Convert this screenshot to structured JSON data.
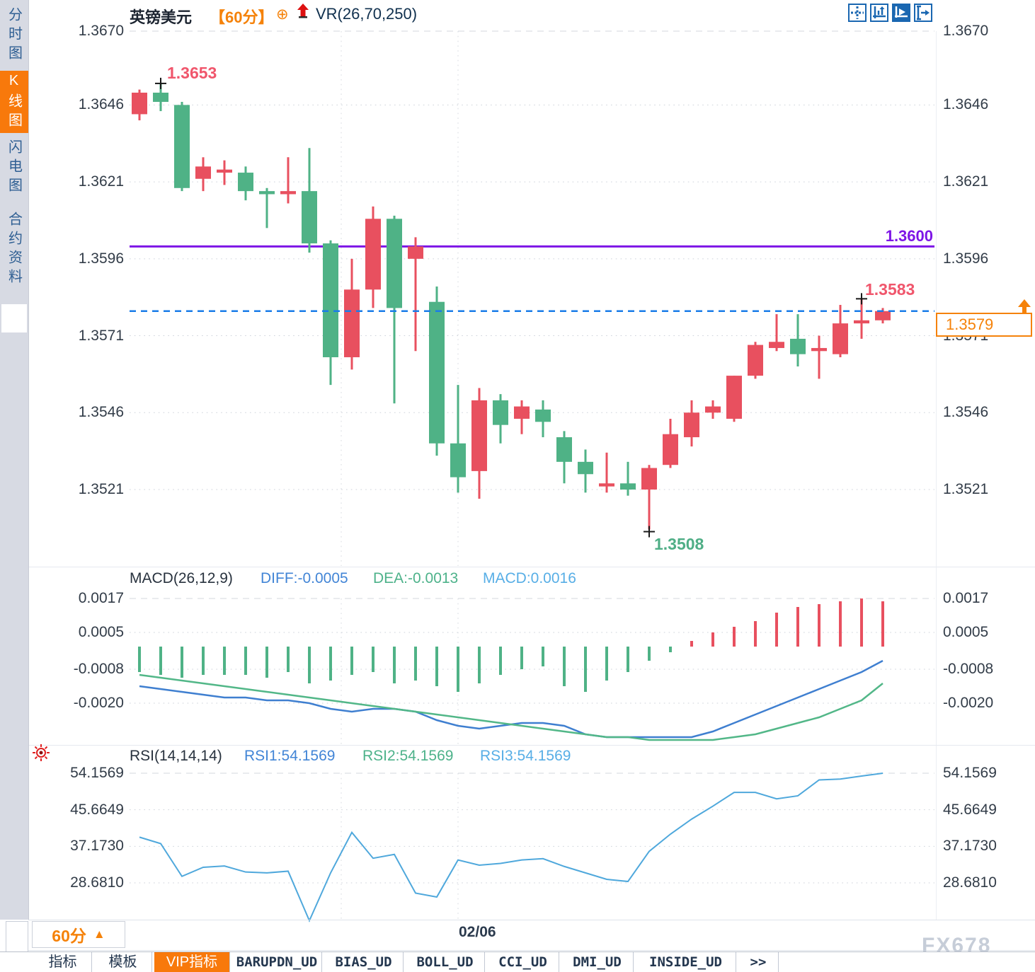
{
  "window": {
    "watermark": "FX678"
  },
  "sidebar": {
    "items": [
      {
        "label": "分时图",
        "active": false
      },
      {
        "label": "K线图",
        "active": true
      },
      {
        "label": "闪电图",
        "active": false
      },
      {
        "label": "合约资料",
        "active": false
      }
    ]
  },
  "header": {
    "symbol": "英镑美元",
    "period": "【60分】",
    "plus_icon": "circle-plus-icon",
    "arrow_icon": "red-up-arrow-icon",
    "indicator": "VR(26,70,250)"
  },
  "toolbar": {
    "icons": [
      "crosshair-icon",
      "axis-scale-icon",
      "pointer-chart-icon",
      "export-chart-icon"
    ]
  },
  "main_chart": {
    "y_axis": [
      "1.3670",
      "1.3646",
      "1.3621",
      "1.3596",
      "1.3571",
      "1.3546",
      "1.3521"
    ],
    "high_label": "1.3653",
    "low_label": "1.3508",
    "hline_label": "1.3600",
    "swing_high_label": "1.3583",
    "current_price": "1.3579"
  },
  "macd_panel": {
    "title": "MACD(26,12,9)",
    "diff_label": "DIFF:-0.0005",
    "dea_label": "DEA:-0.0013",
    "macd_label": "MACD:0.0016",
    "y_axis": [
      "0.0017",
      "0.0005",
      "-0.0008",
      "-0.0020"
    ]
  },
  "rsi_panel": {
    "title": "RSI(14,14,14)",
    "rsi1_label": "RSI1:54.1569",
    "rsi2_label": "RSI2:54.1569",
    "rsi3_label": "RSI3:54.1569",
    "y_axis": [
      "54.1569",
      "45.6649",
      "37.1730",
      "28.6810"
    ],
    "flag_icon": "red-target-icon"
  },
  "bottom": {
    "period_button": {
      "label": "60分",
      "arrow": "▲"
    },
    "date_label": "02/06",
    "tabs": [
      {
        "label": "指标",
        "active": false
      },
      {
        "label": "模板",
        "active": false
      },
      {
        "label": "VIP指标",
        "active": true
      },
      {
        "label": "BARUPDN_UD",
        "active": false
      },
      {
        "label": "BIAS_UD",
        "active": false
      },
      {
        "label": "BOLL_UD",
        "active": false
      },
      {
        "label": "CCI_UD",
        "active": false
      },
      {
        "label": "DMI_UD",
        "active": false
      },
      {
        "label": "INSIDE_UD",
        "active": false
      },
      {
        "label": ">>",
        "active": false
      }
    ]
  },
  "colors": {
    "up": "#e8505f",
    "down": "#4fb286",
    "accent_orange": "#f5820a",
    "purple_line": "#7d15e6",
    "current_price_line": "#1a7ce8",
    "diff_line": "#3f7fd0",
    "dea_line": "#52b788",
    "rsi_line": "#4fa8dc"
  },
  "chart_data": [
    {
      "type": "candlestick",
      "title": "英镑美元 60分",
      "y_ticks": [
        1.367,
        1.3646,
        1.3621,
        1.3596,
        1.3571,
        1.3546,
        1.3521
      ],
      "horizontal_line": 1.36,
      "current_price": 1.3579,
      "session_label": "02/06",
      "marked_high": 1.3653,
      "marked_low": 1.3508,
      "swing_high": 1.3583,
      "markers": [
        {
          "candle": 1,
          "at": "high"
        },
        {
          "candle": 24,
          "at": "low"
        },
        {
          "candle": 34,
          "at": "high"
        }
      ],
      "candles": [
        [
          1.3643,
          1.3651,
          1.3641,
          1.365
        ],
        [
          1.365,
          1.3653,
          1.3644,
          1.3647
        ],
        [
          1.3646,
          1.3647,
          1.3618,
          1.3619
        ],
        [
          1.3622,
          1.3629,
          1.3618,
          1.3626
        ],
        [
          1.3624,
          1.3628,
          1.362,
          1.3625
        ],
        [
          1.3624,
          1.3626,
          1.3615,
          1.3618
        ],
        [
          1.3618,
          1.3619,
          1.3606,
          1.3617
        ],
        [
          1.3617,
          1.3629,
          1.3614,
          1.3618
        ],
        [
          1.3618,
          1.3632,
          1.3598,
          1.3601
        ],
        [
          1.3601,
          1.3602,
          1.3555,
          1.3564
        ],
        [
          1.3564,
          1.3596,
          1.356,
          1.3586
        ],
        [
          1.3586,
          1.3613,
          1.358,
          1.3609
        ],
        [
          1.3609,
          1.361,
          1.3549,
          1.358
        ],
        [
          1.3596,
          1.3603,
          1.3566,
          1.36
        ],
        [
          1.3582,
          1.3587,
          1.3532,
          1.3536
        ],
        [
          1.3536,
          1.3555,
          1.352,
          1.3525
        ],
        [
          1.3527,
          1.3554,
          1.3518,
          1.355
        ],
        [
          1.355,
          1.3552,
          1.3536,
          1.3542
        ],
        [
          1.3544,
          1.355,
          1.3539,
          1.3548
        ],
        [
          1.3547,
          1.355,
          1.3538,
          1.3543
        ],
        [
          1.3538,
          1.354,
          1.3523,
          1.353
        ],
        [
          1.353,
          1.3534,
          1.352,
          1.3526
        ],
        [
          1.3522,
          1.3533,
          1.352,
          1.3523
        ],
        [
          1.3523,
          1.353,
          1.3519,
          1.3521
        ],
        [
          1.3521,
          1.3529,
          1.3508,
          1.3528
        ],
        [
          1.3529,
          1.3544,
          1.3528,
          1.3539
        ],
        [
          1.3538,
          1.355,
          1.3535,
          1.3546
        ],
        [
          1.3546,
          1.355,
          1.3544,
          1.3548
        ],
        [
          1.3544,
          1.3558,
          1.3543,
          1.3558
        ],
        [
          1.3558,
          1.3569,
          1.3557,
          1.3568
        ],
        [
          1.3567,
          1.3578,
          1.3566,
          1.3569
        ],
        [
          1.357,
          1.3578,
          1.3561,
          1.3565
        ],
        [
          1.3566,
          1.3571,
          1.3557,
          1.3567
        ],
        [
          1.3565,
          1.3581,
          1.3564,
          1.3575
        ],
        [
          1.3575,
          1.3583,
          1.357,
          1.3576
        ],
        [
          1.3576,
          1.358,
          1.3575,
          1.3579
        ]
      ]
    },
    {
      "type": "bar",
      "title": "MACD(26,12,9)",
      "y_ticks": [
        0.0017,
        0.0005,
        -0.0008,
        -0.002
      ],
      "diff": -0.0005,
      "dea": -0.0013,
      "macd": 0.0016,
      "histogram": [
        -0.0009,
        -0.001,
        -0.0011,
        -0.001,
        -0.001,
        -0.001,
        -0.0011,
        -0.0009,
        -0.0013,
        -0.0012,
        -0.001,
        -0.0009,
        -0.0013,
        -0.0012,
        -0.0014,
        -0.0016,
        -0.0013,
        -0.001,
        -0.0008,
        -0.0007,
        -0.0014,
        -0.0016,
        -0.0012,
        -0.0009,
        -0.0005,
        -0.0002,
        0.0002,
        0.0005,
        0.0007,
        0.0009,
        0.0012,
        0.0014,
        0.0015,
        0.0016,
        0.0017,
        0.0016
      ],
      "series": [
        {
          "name": "DIFF",
          "color": "#3f7fd0",
          "values": [
            -0.0014,
            -0.0015,
            -0.0016,
            -0.0017,
            -0.0018,
            -0.0018,
            -0.0019,
            -0.0019,
            -0.002,
            -0.0022,
            -0.0023,
            -0.0022,
            -0.0022,
            -0.0023,
            -0.0026,
            -0.0028,
            -0.0029,
            -0.0028,
            -0.0027,
            -0.0027,
            -0.0028,
            -0.0031,
            -0.0032,
            -0.0032,
            -0.0032,
            -0.0032,
            -0.0032,
            -0.003,
            -0.0027,
            -0.0024,
            -0.0021,
            -0.0018,
            -0.0015,
            -0.0012,
            -0.0009,
            -0.0005
          ]
        },
        {
          "name": "DEA",
          "color": "#52b788",
          "values": [
            -0.001,
            -0.0011,
            -0.0012,
            -0.0013,
            -0.0014,
            -0.0015,
            -0.0016,
            -0.0017,
            -0.0018,
            -0.0019,
            -0.002,
            -0.0021,
            -0.0022,
            -0.0023,
            -0.0024,
            -0.0025,
            -0.0026,
            -0.0027,
            -0.0028,
            -0.0029,
            -0.003,
            -0.0031,
            -0.0032,
            -0.0032,
            -0.0033,
            -0.0033,
            -0.0033,
            -0.0033,
            -0.0032,
            -0.0031,
            -0.0029,
            -0.0027,
            -0.0025,
            -0.0022,
            -0.0019,
            -0.0013
          ]
        }
      ]
    },
    {
      "type": "line",
      "title": "RSI(14,14,14)",
      "y_ticks": [
        54.1569,
        45.6649,
        37.173,
        28.681
      ],
      "series": [
        {
          "name": "RSI1",
          "color": "#4fa8dc",
          "values": [
            39.3,
            37.8,
            30.2,
            32.3,
            32.6,
            31.2,
            31.0,
            31.4,
            19.9,
            31.0,
            40.4,
            34.4,
            35.3,
            26.3,
            25.4,
            34.0,
            32.8,
            33.2,
            34.0,
            34.3,
            32.5,
            31.0,
            29.5,
            29.0,
            36.0,
            40.0,
            43.5,
            46.5,
            49.7,
            49.7,
            48.2,
            48.9,
            52.6,
            52.8,
            53.5,
            54.1569
          ]
        }
      ]
    }
  ]
}
